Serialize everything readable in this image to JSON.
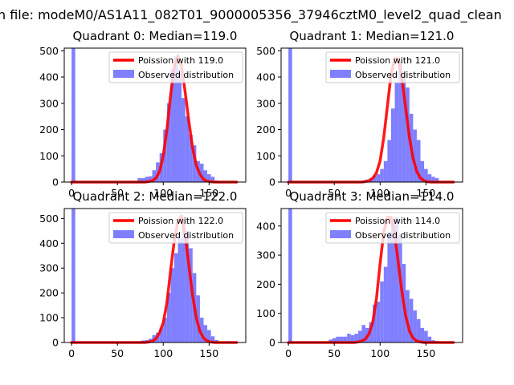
{
  "figure": {
    "suptitle": "n file: modeM0/AS1A11_082T01_9000005356_37946cztM0_level2_quad_clean"
  },
  "chart_data": [
    {
      "type": "bar",
      "title": "Quadrant 0: Median=119.0",
      "xlim": [
        -8,
        190
      ],
      "ylim": [
        0,
        510
      ],
      "xticks": [
        0,
        50,
        100,
        150
      ],
      "yticks": [
        0,
        100,
        200,
        300,
        400,
        500
      ],
      "legend": {
        "placement": "top-right",
        "entries": [
          "Poission with 119.0",
          "Observed distribution"
        ]
      },
      "hist_color": "#7f7fff",
      "line_color": "#ff0000",
      "bin_width": 4,
      "bins_x": [
        0,
        4,
        8,
        12,
        16,
        20,
        24,
        28,
        32,
        36,
        40,
        44,
        48,
        52,
        56,
        60,
        64,
        68,
        72,
        76,
        80,
        84,
        88,
        92,
        96,
        100,
        104,
        108,
        112,
        116,
        120,
        124,
        128,
        132,
        136,
        140,
        144,
        148,
        152,
        156,
        160,
        164,
        168,
        172,
        176
      ],
      "counts": [
        510,
        0,
        0,
        0,
        0,
        0,
        0,
        0,
        0,
        0,
        0,
        0,
        0,
        0,
        0,
        0,
        0,
        2,
        15,
        15,
        20,
        22,
        45,
        75,
        110,
        200,
        300,
        430,
        480,
        430,
        320,
        250,
        180,
        140,
        80,
        70,
        45,
        30,
        20,
        6,
        0,
        0,
        0,
        0,
        0
      ],
      "poisson_x": [
        0,
        4,
        8,
        12,
        16,
        20,
        24,
        28,
        32,
        36,
        40,
        44,
        48,
        52,
        56,
        60,
        64,
        68,
        72,
        76,
        80,
        84,
        88,
        92,
        96,
        100,
        104,
        108,
        112,
        116,
        120,
        124,
        128,
        132,
        136,
        140,
        144,
        148,
        152,
        156,
        160,
        164,
        168,
        172,
        176,
        180
      ],
      "poisson_y": [
        0,
        0,
        0,
        0,
        0,
        0,
        0,
        0,
        0,
        0,
        0,
        0,
        0,
        0,
        0,
        0,
        0,
        0,
        0,
        0,
        0,
        2,
        5,
        15,
        40,
        100,
        200,
        330,
        440,
        480,
        440,
        340,
        230,
        130,
        65,
        30,
        10,
        4,
        1,
        0,
        0,
        0,
        0,
        0,
        0,
        0
      ]
    },
    {
      "type": "bar",
      "title": "Quadrant 1: Median=121.0",
      "xlim": [
        -8,
        190
      ],
      "ylim": [
        0,
        510
      ],
      "xticks": [
        0,
        50,
        100,
        150
      ],
      "yticks": [
        0,
        100,
        200,
        300,
        400,
        500
      ],
      "legend": {
        "placement": "top-right",
        "entries": [
          "Poission with 121.0",
          "Observed distribution"
        ]
      },
      "hist_color": "#7f7fff",
      "line_color": "#ff0000",
      "bin_width": 4,
      "bins_x": [
        0,
        4,
        8,
        12,
        16,
        20,
        24,
        28,
        32,
        36,
        40,
        44,
        48,
        52,
        56,
        60,
        64,
        68,
        72,
        76,
        80,
        84,
        88,
        92,
        96,
        100,
        104,
        108,
        112,
        116,
        120,
        124,
        128,
        132,
        136,
        140,
        144,
        148,
        152,
        156,
        160,
        164,
        168,
        172,
        176
      ],
      "counts": [
        510,
        0,
        0,
        0,
        0,
        0,
        0,
        0,
        0,
        0,
        0,
        0,
        0,
        0,
        0,
        0,
        0,
        0,
        0,
        0,
        5,
        10,
        15,
        25,
        30,
        50,
        80,
        160,
        280,
        380,
        460,
        420,
        360,
        260,
        200,
        160,
        80,
        50,
        30,
        20,
        15,
        0,
        0,
        0,
        0
      ],
      "poisson_x": [
        0,
        4,
        8,
        12,
        16,
        20,
        24,
        28,
        32,
        36,
        40,
        44,
        48,
        52,
        56,
        60,
        64,
        68,
        72,
        76,
        80,
        84,
        88,
        92,
        96,
        100,
        104,
        108,
        112,
        116,
        120,
        124,
        128,
        132,
        136,
        140,
        144,
        148,
        152,
        156,
        160,
        164,
        168,
        172,
        176,
        180
      ],
      "poisson_y": [
        0,
        0,
        0,
        0,
        0,
        0,
        0,
        0,
        0,
        0,
        0,
        0,
        0,
        0,
        0,
        0,
        0,
        0,
        0,
        0,
        0,
        2,
        5,
        15,
        35,
        80,
        170,
        290,
        410,
        470,
        470,
        390,
        280,
        170,
        90,
        40,
        15,
        5,
        1,
        0,
        0,
        0,
        0,
        0,
        0,
        0
      ]
    },
    {
      "type": "bar",
      "title": "Quadrant 2: Median=122.0",
      "xlim": [
        -8,
        190
      ],
      "ylim": [
        0,
        540
      ],
      "xticks": [
        0,
        50,
        100,
        150
      ],
      "yticks": [
        0,
        100,
        200,
        300,
        400,
        500
      ],
      "legend": {
        "placement": "top-right",
        "entries": [
          "Poission with 122.0",
          "Observed distribution"
        ]
      },
      "hist_color": "#7f7fff",
      "line_color": "#ff0000",
      "bin_width": 4,
      "bins_x": [
        0,
        4,
        8,
        12,
        16,
        20,
        24,
        28,
        32,
        36,
        40,
        44,
        48,
        52,
        56,
        60,
        64,
        68,
        72,
        76,
        80,
        84,
        88,
        92,
        96,
        100,
        104,
        108,
        112,
        116,
        120,
        124,
        128,
        132,
        136,
        140,
        144,
        148,
        152,
        156,
        160,
        164,
        168,
        172,
        176
      ],
      "counts": [
        540,
        0,
        0,
        0,
        0,
        0,
        0,
        0,
        0,
        0,
        0,
        0,
        0,
        0,
        0,
        0,
        0,
        0,
        5,
        8,
        10,
        15,
        30,
        40,
        60,
        100,
        200,
        300,
        360,
        420,
        500,
        450,
        380,
        280,
        190,
        100,
        70,
        50,
        25,
        10,
        3,
        0,
        0,
        0,
        0
      ],
      "poisson_x": [
        0,
        4,
        8,
        12,
        16,
        20,
        24,
        28,
        32,
        36,
        40,
        44,
        48,
        52,
        56,
        60,
        64,
        68,
        72,
        76,
        80,
        84,
        88,
        92,
        96,
        100,
        104,
        108,
        112,
        116,
        120,
        124,
        128,
        132,
        136,
        140,
        144,
        148,
        152,
        156,
        160,
        164,
        168,
        172,
        176,
        180
      ],
      "poisson_y": [
        0,
        0,
        0,
        0,
        0,
        0,
        0,
        0,
        0,
        0,
        0,
        0,
        0,
        0,
        0,
        0,
        0,
        0,
        0,
        0,
        0,
        2,
        5,
        15,
        40,
        80,
        160,
        290,
        410,
        490,
        510,
        430,
        310,
        190,
        100,
        45,
        18,
        6,
        2,
        0,
        0,
        0,
        0,
        0,
        0,
        0
      ]
    },
    {
      "type": "bar",
      "title": "Quadrant 3: Median=114.0",
      "xlim": [
        -8,
        190
      ],
      "ylim": [
        0,
        460
      ],
      "xticks": [
        0,
        50,
        100,
        150
      ],
      "yticks": [
        0,
        100,
        200,
        300,
        400
      ],
      "legend": {
        "placement": "top-right",
        "entries": [
          "Poission with 114.0",
          "Observed distribution"
        ]
      },
      "hist_color": "#7f7fff",
      "line_color": "#ff0000",
      "bin_width": 4,
      "bins_x": [
        0,
        4,
        8,
        12,
        16,
        20,
        24,
        28,
        32,
        36,
        40,
        44,
        48,
        52,
        56,
        60,
        64,
        68,
        72,
        76,
        80,
        84,
        88,
        92,
        96,
        100,
        104,
        108,
        112,
        116,
        120,
        124,
        128,
        132,
        136,
        140,
        144,
        148,
        152,
        156,
        160,
        164,
        168,
        172,
        176
      ],
      "counts": [
        460,
        0,
        0,
        0,
        0,
        0,
        0,
        0,
        0,
        0,
        0,
        10,
        15,
        20,
        20,
        20,
        30,
        25,
        30,
        40,
        60,
        50,
        70,
        130,
        140,
        210,
        260,
        380,
        420,
        430,
        370,
        270,
        180,
        150,
        110,
        80,
        50,
        40,
        20,
        8,
        5,
        0,
        0,
        0,
        0
      ],
      "poisson_x": [
        0,
        4,
        8,
        12,
        16,
        20,
        24,
        28,
        32,
        36,
        40,
        44,
        48,
        52,
        56,
        60,
        64,
        68,
        72,
        76,
        80,
        84,
        88,
        92,
        96,
        100,
        104,
        108,
        112,
        116,
        120,
        124,
        128,
        132,
        136,
        140,
        144,
        148,
        152,
        156,
        160,
        164,
        168,
        172,
        176,
        180
      ],
      "poisson_y": [
        0,
        0,
        0,
        0,
        0,
        0,
        0,
        0,
        0,
        0,
        0,
        0,
        0,
        0,
        0,
        0,
        0,
        0,
        0,
        2,
        5,
        12,
        30,
        70,
        150,
        270,
        380,
        430,
        430,
        370,
        270,
        170,
        90,
        40,
        15,
        5,
        2,
        0,
        0,
        0,
        0,
        0,
        0,
        0,
        0,
        0
      ]
    }
  ]
}
